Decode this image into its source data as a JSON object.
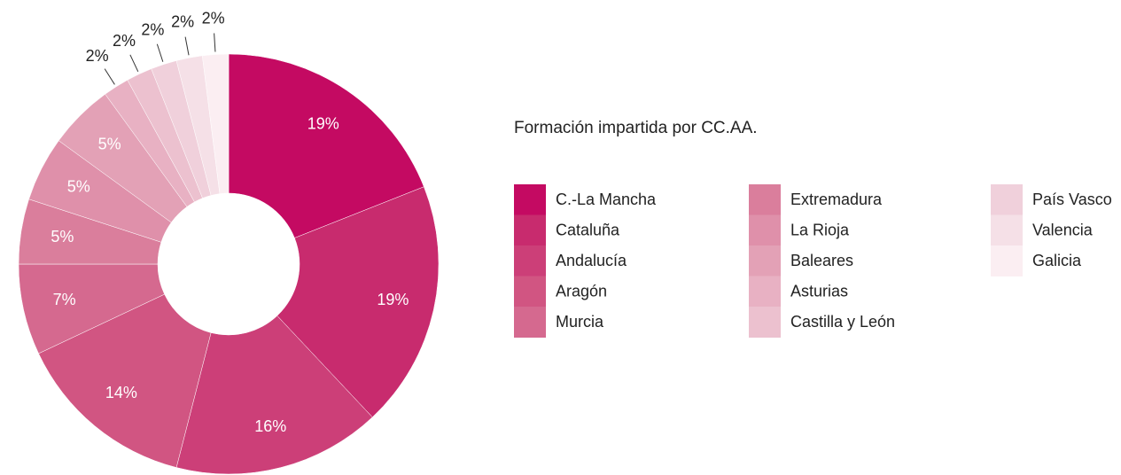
{
  "chart_data": {
    "type": "donut",
    "title": "Formación impartida por CC.AA.",
    "categories": [
      "C.-La Mancha",
      "Cataluña",
      "Andalucía",
      "Aragón",
      "Murcia",
      "Extremadura",
      "La Rioja",
      "Baleares",
      "Asturias",
      "Castilla y León",
      "País Vasco",
      "Valencia",
      "Galicia"
    ],
    "values": [
      19,
      19,
      16,
      14,
      7,
      5,
      5,
      5,
      2,
      2,
      2,
      2,
      2
    ],
    "value_labels": [
      "19%",
      "19%",
      "16%",
      "14%",
      "7%",
      "5%",
      "5%",
      "5%",
      "2%",
      "2%",
      "2%",
      "2%",
      "2%"
    ],
    "colors": [
      "#c40a62",
      "#c82b6e",
      "#cc3f78",
      "#d15582",
      "#d5698f",
      "#da7e9c",
      "#df90aa",
      "#e3a1b6",
      "#e8b1c3",
      "#ecc1cf",
      "#f0d0db",
      "#f5e0e7",
      "#fbeef2"
    ]
  }
}
